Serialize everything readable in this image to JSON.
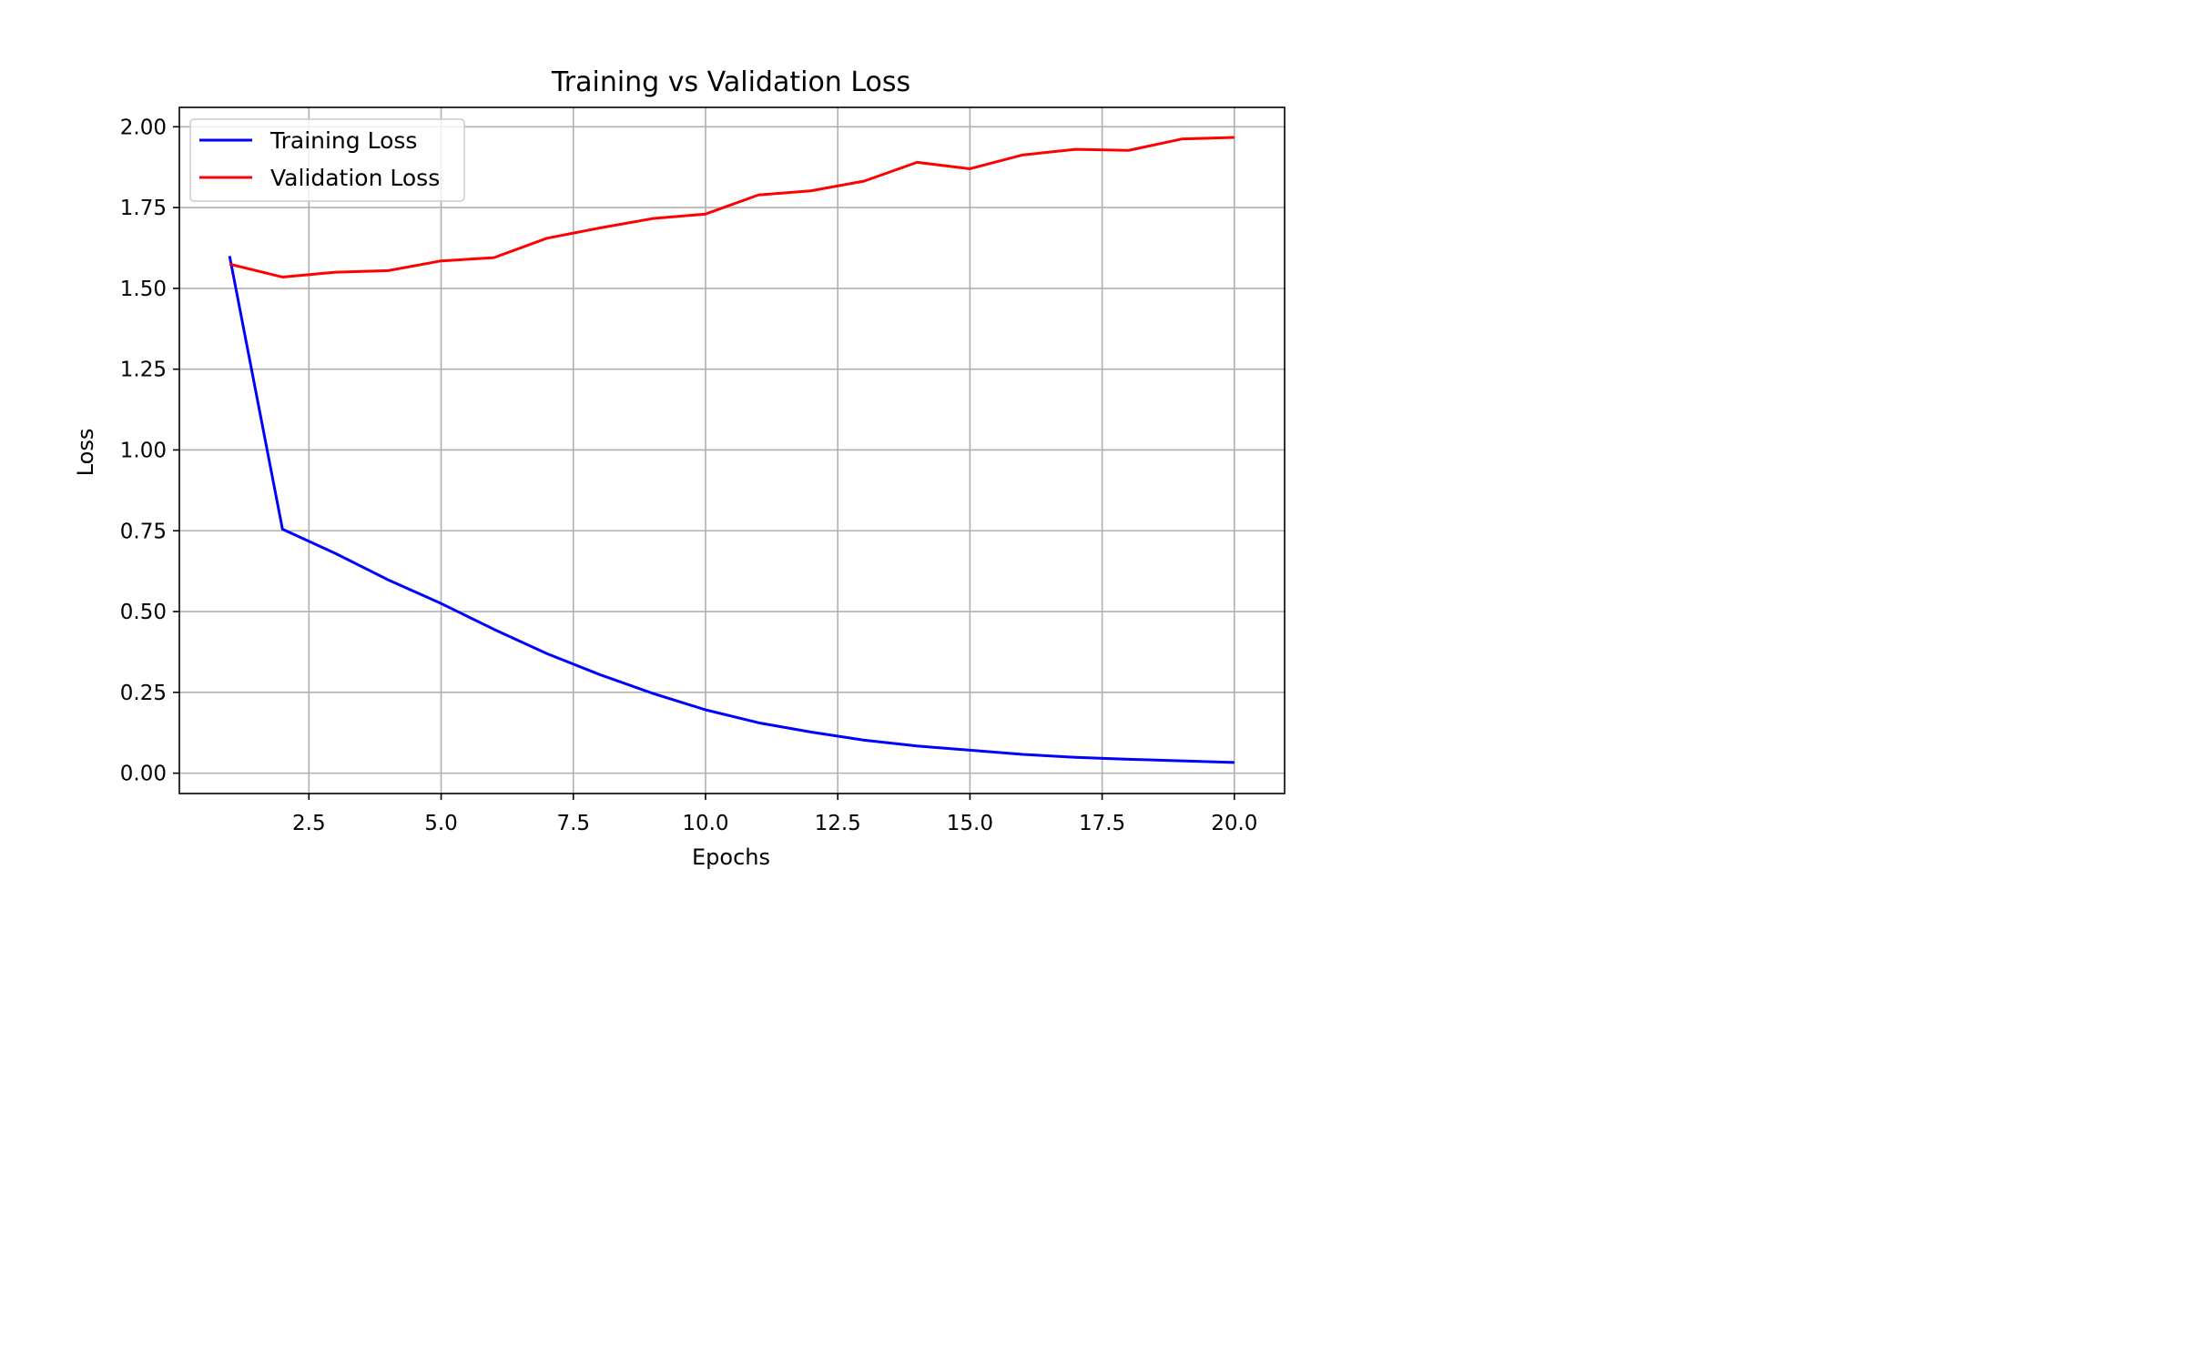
{
  "chart_data": {
    "type": "line",
    "title": "Training vs Validation Loss",
    "xlabel": "Epochs",
    "ylabel": "Loss",
    "x": [
      1,
      2,
      3,
      4,
      5,
      6,
      7,
      8,
      9,
      10,
      11,
      12,
      13,
      14,
      15,
      16,
      17,
      18,
      19,
      20
    ],
    "series": [
      {
        "name": "Training Loss",
        "color": "#0000ff",
        "values": [
          1.6,
          0.755,
          0.68,
          0.598,
          0.525,
          0.445,
          0.37,
          0.305,
          0.247,
          0.196,
          0.156,
          0.127,
          0.102,
          0.084,
          0.071,
          0.058,
          0.049,
          0.043,
          0.038,
          0.033
        ]
      },
      {
        "name": "Validation Loss",
        "color": "#ff0000",
        "values": [
          1.575,
          1.535,
          1.55,
          1.555,
          1.585,
          1.595,
          1.655,
          1.687,
          1.716,
          1.73,
          1.789,
          1.802,
          1.832,
          1.89,
          1.87,
          1.913,
          1.93,
          1.927,
          1.962,
          1.967
        ]
      }
    ],
    "xlim": [
      0.05,
      20.95
    ],
    "ylim": [
      -0.063,
      2.06
    ],
    "xticks": [
      2.5,
      5.0,
      7.5,
      10.0,
      12.5,
      15.0,
      17.5,
      20.0
    ],
    "xtick_labels": [
      "2.5",
      "5.0",
      "7.5",
      "10.0",
      "12.5",
      "15.0",
      "17.5",
      "20.0"
    ],
    "yticks": [
      0.0,
      0.25,
      0.5,
      0.75,
      1.0,
      1.25,
      1.5,
      1.75,
      2.0
    ],
    "ytick_labels": [
      "0.00",
      "0.25",
      "0.50",
      "0.75",
      "1.00",
      "1.25",
      "1.50",
      "1.75",
      "2.00"
    ],
    "grid": true,
    "legend_position": "top-left"
  }
}
